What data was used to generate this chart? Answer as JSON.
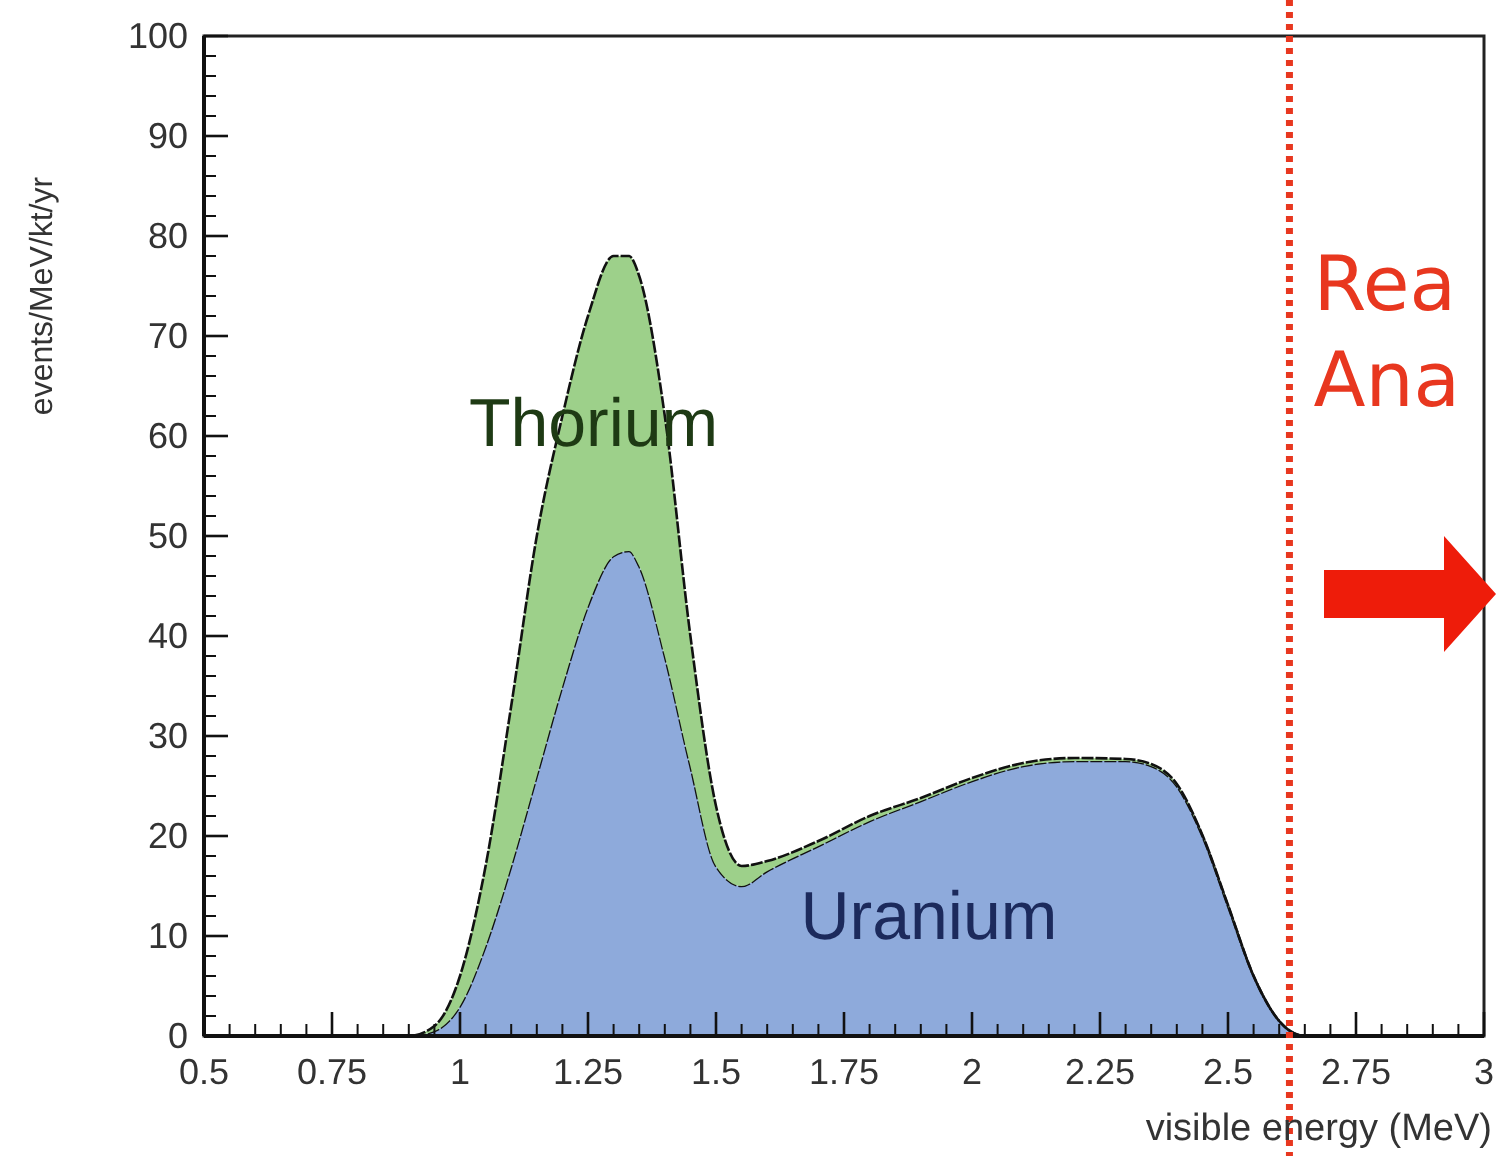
{
  "chart_data": {
    "type": "area",
    "stacked": true,
    "xlabel": "visible energy (MeV)",
    "ylabel": "events/MeV/kt/yr",
    "x": [
      0.5,
      0.9,
      0.95,
      1.0,
      1.05,
      1.1,
      1.15,
      1.2,
      1.25,
      1.3,
      1.33,
      1.35,
      1.4,
      1.45,
      1.5,
      1.55,
      1.6,
      1.7,
      1.8,
      1.9,
      2.0,
      2.1,
      2.2,
      2.3,
      2.35,
      2.4,
      2.45,
      2.5,
      2.55,
      2.6,
      2.65,
      3.0
    ],
    "series": [
      {
        "name": "Uranium",
        "color": "#8eaadb",
        "values": [
          0,
          0,
          0.5,
          3,
          9,
          17,
          26,
          35,
          43,
          48,
          48.5,
          47,
          38,
          27,
          17,
          15,
          16.5,
          19,
          21.5,
          23.5,
          25.5,
          27,
          27.5,
          27.5,
          27,
          25,
          20,
          13,
          6,
          1.5,
          0,
          0
        ]
      },
      {
        "name": "Thorium",
        "color": "#9dd08a",
        "values": [
          0,
          0,
          0.5,
          3,
          8,
          16,
          24,
          27,
          29,
          30,
          29.5,
          29,
          24,
          13,
          6,
          2,
          1,
          0.5,
          0.5,
          0.3,
          0.3,
          0.3,
          0.3,
          0.2,
          0.2,
          0.2,
          0.1,
          0.1,
          0,
          0,
          0,
          0
        ]
      }
    ],
    "xlim": [
      0.5,
      3
    ],
    "ylim": [
      0,
      100
    ],
    "xticks": [
      0.5,
      0.75,
      1,
      1.25,
      1.5,
      1.75,
      2,
      2.25,
      2.5,
      2.75,
      3
    ],
    "yticks": [
      0,
      10,
      20,
      30,
      40,
      50,
      60,
      70,
      80,
      90,
      100
    ],
    "grid": false,
    "legend": false,
    "ref_lines": [
      {
        "axis": "x",
        "value": 2.62,
        "color": "#e8371f",
        "line_style": "dotted"
      }
    ],
    "annotations": [
      "Rea",
      "Ana"
    ]
  }
}
